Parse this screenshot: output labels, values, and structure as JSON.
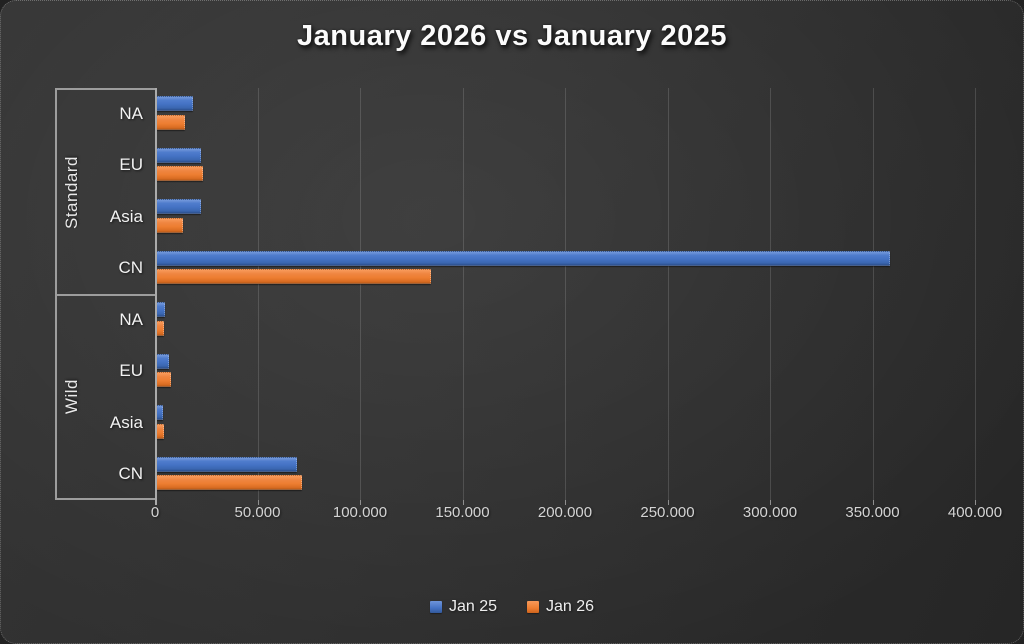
{
  "title": "January 2026 vs January 2025",
  "chart_data": {
    "type": "bar",
    "orientation": "horizontal",
    "title": "January 2026 vs January 2025",
    "series_names": [
      "Jan 25",
      "Jan 26"
    ],
    "series_colors": [
      "#4472c4",
      "#ed7d31"
    ],
    "groups": [
      {
        "label": "Standard",
        "rows": [
          {
            "category": "NA",
            "values": [
              18000,
              14000
            ]
          },
          {
            "category": "EU",
            "values": [
              22000,
              23000
            ]
          },
          {
            "category": "Asia",
            "values": [
              22000,
              13000
            ]
          },
          {
            "category": "CN",
            "values": [
              358000,
              134000
            ]
          }
        ]
      },
      {
        "label": "Wild",
        "rows": [
          {
            "category": "NA",
            "values": [
              4500,
              4000
            ]
          },
          {
            "category": "EU",
            "values": [
              6500,
              7500
            ]
          },
          {
            "category": "Asia",
            "values": [
              3500,
              4000
            ]
          },
          {
            "category": "CN",
            "values": [
              69000,
              71000
            ]
          }
        ]
      }
    ],
    "xaxis": {
      "min": 0,
      "max": 400000,
      "tick_step": 50000,
      "tick_labels": [
        "0",
        "50.000",
        "100.000",
        "150.000",
        "200.000",
        "250.000",
        "300.000",
        "350.000",
        "400.000"
      ]
    },
    "grid": true,
    "legend_position": "bottom",
    "background_color": "#2e2e2e",
    "text_color": "#f2f2f2"
  }
}
